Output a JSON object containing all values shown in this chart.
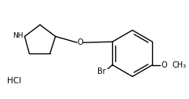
{
  "background_color": "#ffffff",
  "hcl_label": "HCl",
  "br_label": "Br",
  "o_label": "O",
  "nh_label": "NH",
  "ome_label": "O",
  "me_label": "CH₃",
  "figsize": [
    2.41,
    1.26
  ],
  "dpi": 100,
  "lw": 1.0
}
